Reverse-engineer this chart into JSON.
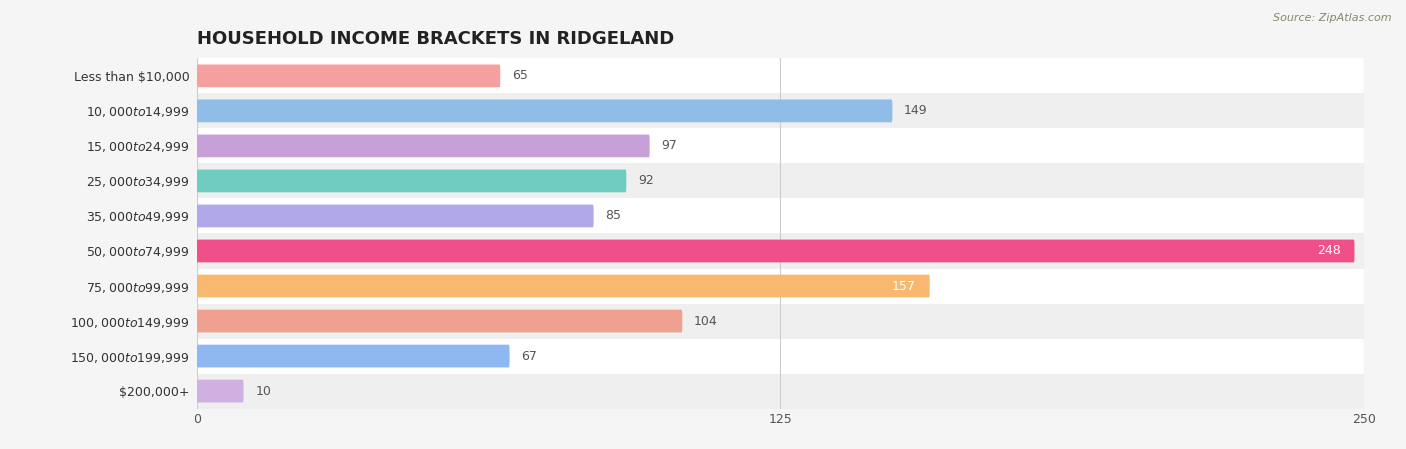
{
  "title": "HOUSEHOLD INCOME BRACKETS IN RIDGELAND",
  "source_text": "Source: ZipAtlas.com",
  "categories": [
    "Less than $10,000",
    "$10,000 to $14,999",
    "$15,000 to $24,999",
    "$25,000 to $34,999",
    "$35,000 to $49,999",
    "$50,000 to $74,999",
    "$75,000 to $99,999",
    "$100,000 to $149,999",
    "$150,000 to $199,999",
    "$200,000+"
  ],
  "values": [
    65,
    149,
    97,
    92,
    85,
    248,
    157,
    104,
    67,
    10
  ],
  "colors": [
    "#f4a0a0",
    "#90bce8",
    "#c8a0d8",
    "#70ccc0",
    "#b0a8e8",
    "#f0508a",
    "#f8b870",
    "#f0a090",
    "#90b8f0",
    "#d0b0e0"
  ],
  "xlim": [
    0,
    250
  ],
  "xticks": [
    0,
    125,
    250
  ],
  "bar_height": 0.65,
  "bg_color": "#f5f5f5",
  "row_colors": [
    "#ffffff",
    "#efefef"
  ],
  "title_fontsize": 13,
  "label_fontsize": 9,
  "value_fontsize": 9,
  "tick_fontsize": 9,
  "label_inside_248": true,
  "label_inside_157": true
}
